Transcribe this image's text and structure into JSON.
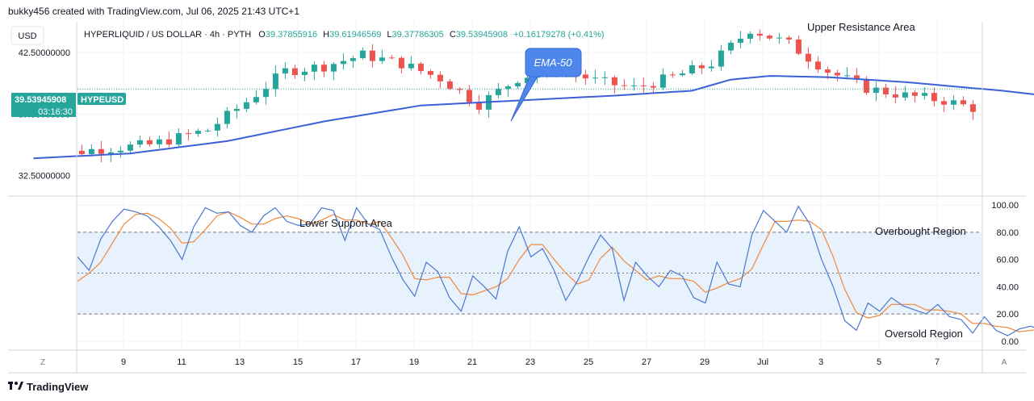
{
  "header": {
    "attribution": "bukky456 created with TradingView.com, Jul 06, 2025 21:43 UTC+1"
  },
  "currency_button": "USD",
  "ohlc": {
    "symbol": "HYPERLIQUID / US DOLLAR · 4h · PYTH",
    "o_label": "O",
    "o_value": "39.37855916",
    "h_label": "H",
    "h_value": "39.61946569",
    "l_label": "L",
    "l_value": "39.37786305",
    "c_label": "C",
    "c_value": "39.53945908",
    "change": "+0.16179278 (+0.41%)"
  },
  "price_tag": {
    "value": "39.53945908",
    "ticker": "HYPEUSD",
    "countdown": "03:16:30"
  },
  "annotations": {
    "upper_resistance": "Upper Resistance Area",
    "lower_support": "Lower Support Area",
    "ema": "EMA-50",
    "overbought": "Overbought Region",
    "oversold": "Oversold Region"
  },
  "footer": {
    "z_button": "Z",
    "a_button": "A",
    "logo_text": "TradingView"
  },
  "colors": {
    "up": "#26a69a",
    "down": "#ef5350",
    "ema": "#3d5fd8",
    "k_line": "#4a77d0",
    "d_line": "#f0883b",
    "band_fill": "#e8f2fc",
    "tag_bg": "#26a69a",
    "callout_bg": "#4f86ec"
  },
  "chart_data": [
    {
      "type": "candlestick",
      "symbol": "HYPEUSD",
      "timeframe": "4h",
      "y_ticks": [
        "32.50000000",
        "37.50000000",
        "42.50000000"
      ],
      "y_range": [
        30.9,
        45.0
      ],
      "x_ticks": [
        "9",
        "11",
        "13",
        "15",
        "17",
        "19",
        "21",
        "23",
        "25",
        "27",
        "29",
        "Jul",
        "3",
        "5",
        "7"
      ],
      "candles_per_day": 6,
      "first_candle_day_offset": -1.55,
      "close_path": [
        [
          0,
          33.9
        ],
        [
          6,
          34.6
        ],
        [
          12,
          35.0
        ],
        [
          18,
          36.2
        ],
        [
          22,
          38.5
        ],
        [
          26,
          41.0
        ],
        [
          30,
          41.4
        ],
        [
          34,
          42.3
        ],
        [
          38,
          41.6
        ],
        [
          42,
          40.4
        ],
        [
          46,
          38.3
        ],
        [
          50,
          40.4
        ],
        [
          54,
          41.3
        ],
        [
          58,
          40.2
        ],
        [
          62,
          39.6
        ],
        [
          66,
          40.5
        ],
        [
          70,
          41.6
        ],
        [
          74,
          44.4
        ],
        [
          78,
          43.2
        ],
        [
          82,
          41.0
        ],
        [
          86,
          39.6
        ],
        [
          90,
          39.0
        ],
        [
          94,
          38.6
        ],
        [
          98,
          37.8
        ],
        [
          102,
          36.6
        ],
        [
          106,
          36.3
        ],
        [
          110,
          35.4
        ],
        [
          114,
          34.2
        ],
        [
          118,
          33.4
        ],
        [
          122,
          33.8
        ],
        [
          126,
          33.0
        ],
        [
          130,
          34.6
        ],
        [
          134,
          35.5
        ],
        [
          138,
          37.9
        ],
        [
          142,
          38.1
        ],
        [
          146,
          38.0
        ],
        [
          150,
          38.0
        ],
        [
          154,
          37.6
        ],
        [
          158,
          37.3
        ],
        [
          162,
          37.0
        ],
        [
          166,
          36.7
        ],
        [
          170,
          37.1
        ],
        [
          174,
          37.6
        ],
        [
          178,
          39.3
        ],
        [
          182,
          40.4
        ],
        [
          186,
          40.1
        ],
        [
          190,
          39.0
        ],
        [
          194,
          37.4
        ],
        [
          198,
          38.0
        ],
        [
          202,
          39.4
        ],
        [
          206,
          40.4
        ],
        [
          210,
          40.3
        ],
        [
          214,
          39.0
        ],
        [
          218,
          38.7
        ],
        [
          222,
          39.4
        ],
        [
          226,
          39.5
        ],
        [
          229,
          39.55
        ]
      ],
      "ema50_path": [
        [
          0,
          33.9
        ],
        [
          10,
          34.3
        ],
        [
          20,
          35.3
        ],
        [
          30,
          36.9
        ],
        [
          40,
          38.2
        ],
        [
          50,
          38.6
        ],
        [
          60,
          39.0
        ],
        [
          68,
          39.4
        ],
        [
          72,
          40.3
        ],
        [
          76,
          40.6
        ],
        [
          82,
          40.5
        ],
        [
          90,
          40.1
        ],
        [
          100,
          39.4
        ],
        [
          110,
          38.5
        ],
        [
          118,
          37.8
        ],
        [
          126,
          37.2
        ],
        [
          134,
          36.9
        ],
        [
          140,
          37.0
        ],
        [
          148,
          37.2
        ],
        [
          156,
          37.2
        ],
        [
          166,
          36.9
        ],
        [
          176,
          37.1
        ],
        [
          186,
          37.6
        ],
        [
          196,
          37.9
        ],
        [
          206,
          38.1
        ],
        [
          214,
          38.6
        ],
        [
          222,
          38.9
        ],
        [
          229,
          39.0
        ]
      ]
    },
    {
      "type": "line",
      "indicator": "stochastic",
      "y_ticks": [
        0,
        20,
        40,
        60,
        80,
        100
      ],
      "y_range": [
        -6,
        106
      ],
      "levels": [
        20,
        50,
        80
      ],
      "series": [
        {
          "role": "k",
          "values": [
            62,
            52,
            75,
            88,
            97,
            95,
            92,
            84,
            74,
            60,
            84,
            98,
            94,
            95,
            85,
            80,
            92,
            98,
            88,
            85,
            86,
            98,
            96,
            74,
            98,
            86,
            82,
            62,
            45,
            33,
            58,
            51,
            32,
            22,
            48,
            40,
            31,
            66,
            84,
            62,
            68,
            52,
            30,
            44,
            62,
            78,
            68,
            30,
            58,
            48,
            40,
            52,
            48,
            32,
            28,
            58,
            42,
            40,
            78,
            96,
            88,
            80,
            99,
            86,
            60,
            40,
            15,
            8,
            28,
            22,
            32,
            26,
            23,
            20,
            27,
            18,
            16,
            6,
            18,
            8,
            4,
            9,
            11,
            8,
            14,
            4,
            9,
            25,
            40,
            14,
            17,
            12,
            17,
            10,
            20,
            8,
            14,
            12,
            18,
            45,
            28,
            42,
            15,
            8,
            42,
            22,
            34,
            30,
            28,
            52,
            92,
            100,
            84,
            90,
            100,
            78,
            92,
            84,
            90,
            86,
            92,
            78,
            88,
            80,
            84,
            78,
            82,
            74,
            60,
            46,
            35,
            20,
            38,
            35,
            14,
            8,
            22,
            52,
            46,
            40,
            48,
            55,
            52,
            58,
            60,
            80,
            85,
            98,
            100,
            92,
            97,
            86,
            90,
            76,
            85,
            80,
            72,
            58,
            44,
            32,
            10,
            8,
            16,
            30,
            42,
            58,
            76,
            90,
            100,
            82,
            90,
            78,
            80,
            58,
            40,
            22,
            12,
            32,
            42,
            48,
            44,
            34,
            46,
            48,
            52,
            60,
            80,
            94
          ]
        },
        {
          "role": "d",
          "values": [
            44,
            50,
            58,
            72,
            86,
            93,
            94,
            90,
            83,
            72,
            73,
            82,
            92,
            95,
            91,
            86,
            86,
            90,
            92,
            90,
            86,
            89,
            93,
            89,
            89,
            86,
            88,
            76,
            63,
            46,
            45,
            47,
            47,
            35,
            34,
            37,
            40,
            46,
            60,
            71,
            71,
            60,
            50,
            42,
            45,
            61,
            69,
            59,
            52,
            45,
            48,
            46,
            46,
            44,
            36,
            39,
            43,
            46,
            53,
            71,
            88,
            88,
            89,
            88,
            82,
            62,
            38,
            21,
            17,
            19,
            27,
            27,
            27,
            23,
            23,
            22,
            20,
            13,
            13,
            11,
            10,
            7,
            8,
            9,
            11,
            9,
            9,
            13,
            25,
            26,
            24,
            14,
            15,
            13,
            15,
            13,
            14,
            11,
            14,
            25,
            30,
            38,
            28,
            22,
            22,
            24,
            33,
            29,
            31,
            37,
            57,
            81,
            92,
            91,
            91,
            89,
            90,
            85,
            88,
            87,
            89,
            85,
            86,
            82,
            84,
            81,
            81,
            78,
            72,
            60,
            47,
            34,
            31,
            31,
            29,
            19,
            15,
            27,
            40,
            46,
            45,
            48,
            52,
            55,
            57,
            66,
            75,
            88,
            94,
            97,
            96,
            92,
            91,
            84,
            84,
            80,
            79,
            70,
            58,
            45,
            29,
            17,
            11,
            18,
            29,
            43,
            59,
            75,
            89,
            91,
            91,
            83,
            83,
            72,
            59,
            40,
            25,
            22,
            29,
            41,
            45,
            42,
            41,
            43,
            49,
            54,
            64,
            78
          ]
        }
      ]
    }
  ]
}
